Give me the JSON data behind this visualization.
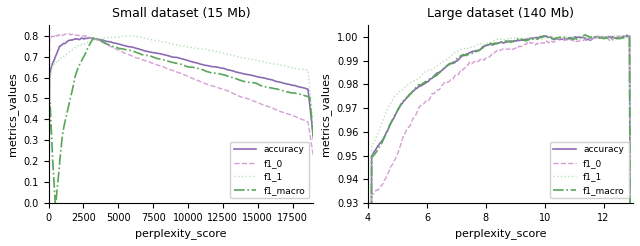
{
  "left_title": "Small dataset (15 Mb)",
  "right_title": "Large dataset (140 Mb)",
  "xlabel": "perplexity_score",
  "ylabel": "metrics_values",
  "colors": {
    "accuracy": "#8B6BB1",
    "f1_0": "#D4A0D4",
    "f1_1": "#B8E0B8",
    "f1_macro": "#5AA55A"
  },
  "linestyles": {
    "accuracy": "-",
    "f1_0": "--",
    "f1_1": ":",
    "f1_macro": "-."
  },
  "linewidths": {
    "accuracy": 1.2,
    "f1_0": 1.0,
    "f1_1": 1.0,
    "f1_macro": 1.2
  },
  "legend_labels": [
    "accuracy",
    "f1_0",
    "f1_1",
    "f1_macro"
  ],
  "left_xlim": [
    0,
    19000
  ],
  "left_ylim": [
    0.0,
    0.85
  ],
  "left_xticks": [
    0,
    2500,
    5000,
    7500,
    10000,
    12500,
    15000,
    17500
  ],
  "left_yticks": [
    0.0,
    0.1,
    0.2,
    0.3,
    0.4,
    0.5,
    0.6,
    0.7,
    0.8
  ],
  "right_xlim": [
    4,
    13
  ],
  "right_ylim": [
    0.93,
    1.005
  ],
  "right_xticks": [
    4,
    6,
    8,
    10,
    12
  ],
  "right_yticks": [
    0.93,
    0.94,
    0.95,
    0.96,
    0.97,
    0.98,
    0.99,
    1.0
  ]
}
